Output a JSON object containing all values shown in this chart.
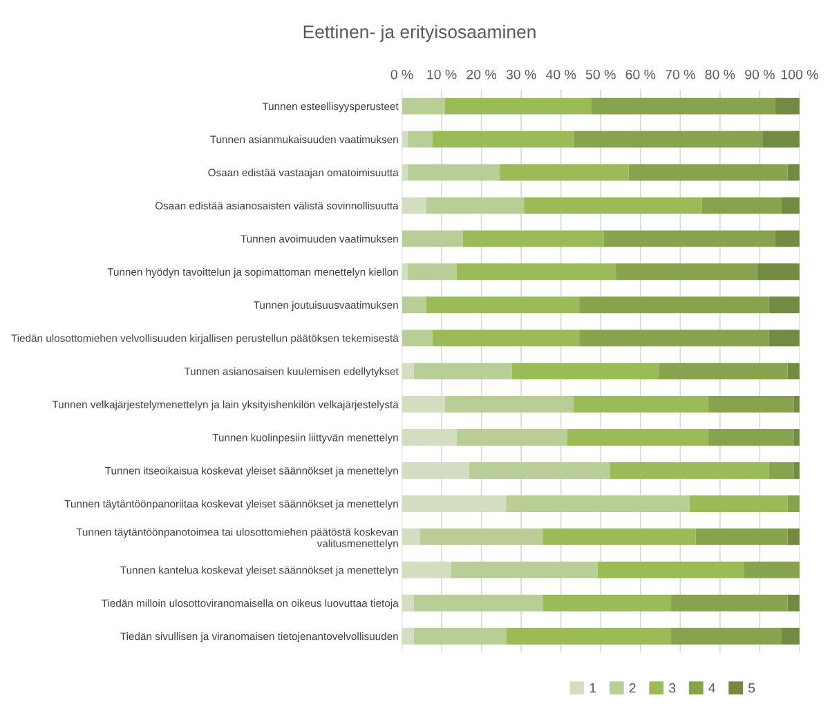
{
  "chart_data": {
    "type": "bar",
    "orientation": "horizontal",
    "stacked": true,
    "title": "Eettinen- ja erityisosaaminen",
    "categories": [
      "Tunnen esteellisyysperusteet",
      "Tunnen asianmukaisuuden vaatimuksen",
      "Osaan edistää vastaajan omatoimisuutta",
      "Osaan edistää asianosaisten välistä sovinnollisuutta",
      "Tunnen avoimuuden vaatimuksen",
      "Tunnen hyödyn tavoittelun ja sopimattoman menettelyn kiellon",
      "Tunnen joutuisuusvaatimuksen",
      "Tiedän ulosottomiehen velvollisuuden kirjallisen perustellun päätöksen tekemisestä",
      "Tunnen asianosaisen kuulemisen edellytykset",
      "Tunnen velkajärjestelymenettelyn ja lain yksityishenkilön velkajärjestelystä",
      "Tunnen kuolinpesiin liittyvän menettelyn",
      "Tunnen itseoikaisua koskevat yleiset säännökset ja menettelyn",
      "Tunnen täytäntöönpanoriitaa koskevat yleiset säännökset ja menettelyn",
      "Tunnen täytäntöönpanotoimea tai ulosottomiehen päätöstä koskevan\nvalitusmenettelyn",
      "Tunnen kantelua koskevat yleiset säännökset ja menettelyn",
      "Tiedän milloin ulosottoviranomaisella on oikeus luovuttaa tietoja",
      "Tiedän sivullisen ja viranomaisen tietojenantovelvollisuuden"
    ],
    "series": [
      {
        "name": "1",
        "color": "#d3dec0",
        "values": [
          null,
          1.5,
          1.5,
          6.1,
          null,
          1.5,
          null,
          null,
          3.0,
          10.8,
          13.8,
          16.9,
          26.2,
          4.5,
          12.3,
          3.0,
          3.0
        ]
      },
      {
        "name": "2",
        "color": "#b9ce97",
        "values": [
          10.8,
          6.2,
          23.1,
          24.6,
          15.3,
          12.3,
          6.1,
          7.7,
          24.7,
          32.3,
          27.8,
          35.4,
          46.1,
          30.9,
          36.9,
          32.4,
          23.2
        ]
      },
      {
        "name": "3",
        "color": "#9bbb59",
        "values": [
          36.9,
          35.4,
          32.4,
          44.7,
          35.5,
          40.0,
          38.5,
          36.9,
          36.9,
          33.9,
          35.4,
          40.0,
          24.7,
          38.5,
          36.9,
          32.3,
          41.5
        ]
      },
      {
        "name": "4",
        "color": "#87a34d",
        "values": [
          46.2,
          47.7,
          40.0,
          20.1,
          43.1,
          35.5,
          47.7,
          47.7,
          32.4,
          21.5,
          21.5,
          6.2,
          3.0,
          23.1,
          13.9,
          29.3,
          27.8
        ]
      },
      {
        "name": "5",
        "color": "#728a41",
        "values": [
          6.1,
          9.2,
          3.0,
          4.5,
          6.1,
          10.7,
          7.7,
          7.7,
          3.0,
          1.5,
          1.5,
          1.5,
          null,
          3.0,
          null,
          3.0,
          4.5
        ]
      }
    ],
    "xlim": [
      0,
      100
    ],
    "xticks": [
      {
        "value": 0,
        "label": "0 %"
      },
      {
        "value": 10,
        "label": "10 %"
      },
      {
        "value": 20,
        "label": "20 %"
      },
      {
        "value": 30,
        "label": "30 %"
      },
      {
        "value": 40,
        "label": "40 %"
      },
      {
        "value": 50,
        "label": "50 %"
      },
      {
        "value": 60,
        "label": "60 %"
      },
      {
        "value": 70,
        "label": "70 %"
      },
      {
        "value": 80,
        "label": "80 %"
      },
      {
        "value": 90,
        "label": "90 %"
      },
      {
        "value": 100,
        "label": "100 %"
      }
    ],
    "grid": "x",
    "legend": "bottom"
  }
}
